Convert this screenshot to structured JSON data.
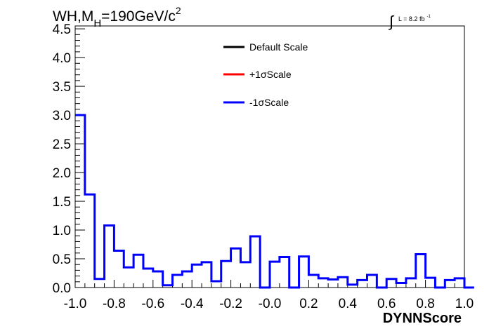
{
  "title": {
    "main_part1": "WH,M",
    "subscript": "H",
    "main_part2": "=190GeV/c",
    "superscript": "2"
  },
  "luminosity": {
    "integral_symbol": "∫",
    "text": "L = 8.2 fb",
    "superscript": "-1"
  },
  "legend": [
    {
      "label": "Default Scale",
      "color": "#000000"
    },
    {
      "label": "+1σScale",
      "color": "#ff0000"
    },
    {
      "label": "-1σScale",
      "color": "#0000ff"
    }
  ],
  "chart_data": {
    "type": "histogram",
    "title": "WH,M_H=190GeV/c^2",
    "xlabel": "DYNNScore",
    "ylabel": "",
    "xlim": [
      -1.0,
      1.0
    ],
    "ylim": [
      0,
      4.55
    ],
    "x_ticks": [
      "-1.0",
      "-0.8",
      "-0.6",
      "-0.4",
      "-0.2",
      "-0.0",
      "0.2",
      "0.4",
      "0.6",
      "0.8",
      "1.0"
    ],
    "y_ticks": [
      "0.0",
      "0.5",
      "1.0",
      "1.5",
      "2.0",
      "2.5",
      "3.0",
      "3.5",
      "4.0",
      "4.5"
    ],
    "bin_edges_start": -1.0,
    "bin_width": 0.05,
    "legend_position": "top-center",
    "series": [
      {
        "name": "-1σScale",
        "color": "#0000ff",
        "values": [
          3.0,
          1.62,
          0.15,
          1.08,
          0.64,
          0.35,
          0.57,
          0.33,
          0.28,
          0.04,
          0.22,
          0.28,
          0.4,
          0.44,
          0.11,
          0.46,
          0.68,
          0.44,
          0.89,
          0.0,
          0.45,
          0.53,
          0.0,
          0.54,
          0.22,
          0.16,
          0.14,
          0.18,
          0.05,
          0.13,
          0.22,
          0.0,
          0.15,
          0.08,
          0.16,
          0.58,
          0.17,
          0.0,
          0.13,
          0.16,
          0.0
        ]
      }
    ]
  }
}
